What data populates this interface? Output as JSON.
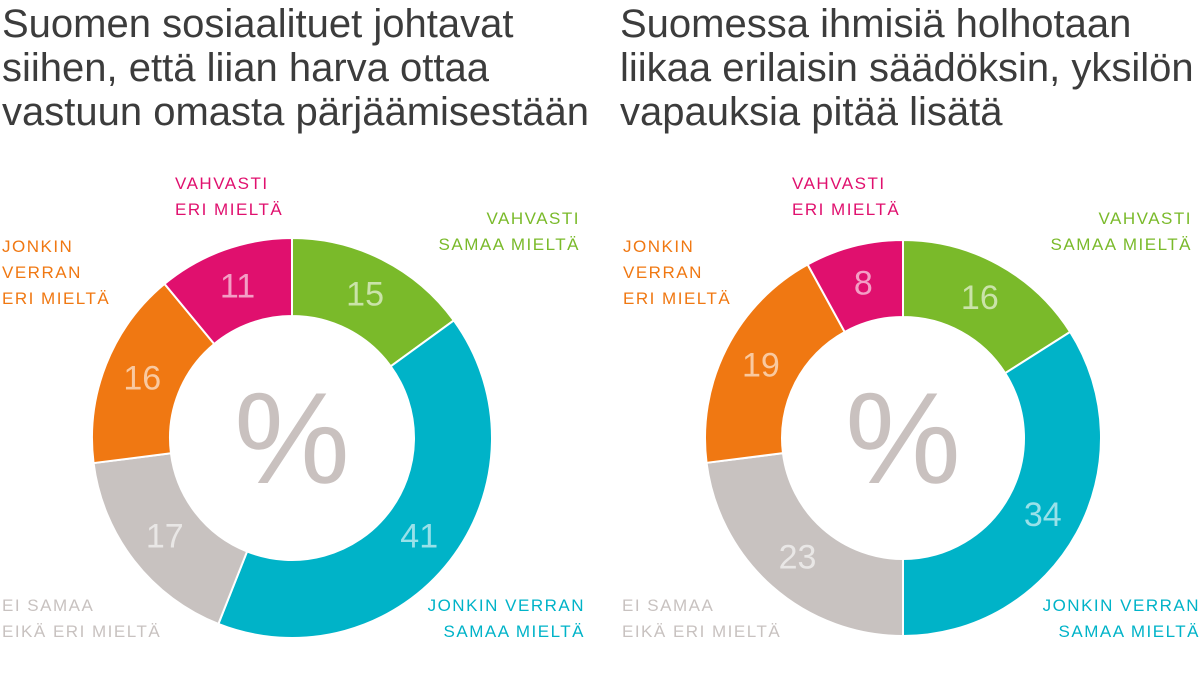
{
  "colors": {
    "strongly_agree": "#7aba2a",
    "somewhat_agree": "#00b3c8",
    "neutral": "#c8c2c0",
    "somewhat_disagree": "#f07812",
    "strongly_disagree": "#e0106e",
    "center_symbol": "#c9c1bf",
    "value_text": "#ffffff",
    "title_text": "#3c3c3c"
  },
  "center_symbol": "%",
  "labels": {
    "strongly_disagree": [
      "VAHVASTI",
      "ERI MIELTÄ"
    ],
    "strongly_agree": [
      "VAHVASTI",
      "SAMAA MIELTÄ"
    ],
    "somewhat_disagree": [
      "JONKIN",
      "VERRAN",
      "ERI MIELTÄ"
    ],
    "neutral": [
      "EI SAMAA",
      "EIKÄ ERI MIELTÄ"
    ],
    "somewhat_agree": [
      "JONKIN VERRAN",
      "SAMAA MIELTÄ"
    ]
  },
  "chart_data": [
    {
      "type": "pie",
      "title_lines": [
        "Suomen sosiaalituet johtavat",
        "siihen, että liian harva ottaa",
        "vastuun omasta pärjäämisestään"
      ],
      "unit": "%",
      "categories": [
        "VAHVASTI SAMAA MIELTÄ",
        "JONKIN VERRAN SAMAA MIELTÄ",
        "EI SAMAA EIKÄ ERI MIELTÄ",
        "JONKIN VERRAN ERI MIELTÄ",
        "VAHVASTI ERI MIELTÄ"
      ],
      "values": [
        15,
        41,
        17,
        16,
        11
      ]
    },
    {
      "type": "pie",
      "title_lines": [
        "Suomessa ihmisiä holhotaan",
        "liikaa erilaisin säädöksin, yksilön",
        "vapauksia pitää lisätä"
      ],
      "unit": "%",
      "categories": [
        "VAHVASTI SAMAA MIELTÄ",
        "JONKIN VERRAN SAMAA MIELTÄ",
        "EI SAMAA EIKÄ ERI MIELTÄ",
        "JONKIN VERRAN ERI MIELTÄ",
        "VAHVASTI ERI MIELTÄ"
      ],
      "values": [
        16,
        34,
        23,
        19,
        8
      ]
    }
  ]
}
